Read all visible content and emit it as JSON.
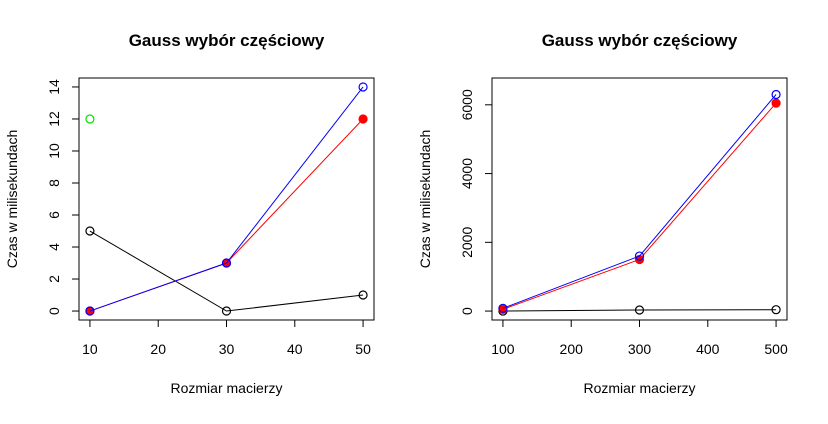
{
  "chart_data": [
    {
      "type": "line",
      "title": "Gauss wybór częściowy",
      "x_label": "Rozmiar macierzy",
      "y_label": "Czas w milisekundach",
      "x": [
        10,
        30,
        50
      ],
      "xlim": [
        8.4,
        51.6
      ],
      "xticks": [
        10,
        20,
        30,
        40,
        50
      ],
      "ylim": [
        -0.56,
        14.56
      ],
      "yticks": [
        0,
        2,
        4,
        6,
        8,
        10,
        12,
        14
      ],
      "series": [
        {
          "color": "#000000",
          "marker": "open",
          "values": [
            5,
            0,
            1
          ]
        },
        {
          "color": "#ff0000",
          "marker": "filled",
          "values": [
            0,
            3,
            12
          ]
        },
        {
          "color": "#0000ff",
          "marker": "open",
          "values": [
            0,
            3,
            14
          ]
        },
        {
          "color": "#00e000",
          "marker": "open",
          "values": [
            12,
            null,
            null
          ]
        }
      ]
    },
    {
      "type": "line",
      "title": "Gauss wybór częściowy",
      "x_label": "Rozmiar macierzy",
      "y_label": "Czas w milisekundach",
      "x": [
        100,
        300,
        500
      ],
      "xlim": [
        84,
        516
      ],
      "xticks": [
        100,
        200,
        300,
        400,
        500
      ],
      "ylim": [
        -260,
        6780
      ],
      "yticks": [
        0,
        2000,
        4000,
        6000
      ],
      "series": [
        {
          "color": "#000000",
          "marker": "open",
          "values": [
            0,
            30,
            40
          ]
        },
        {
          "color": "#ff0000",
          "marker": "filled",
          "values": [
            50,
            1500,
            6050
          ]
        },
        {
          "color": "#0000ff",
          "marker": "open",
          "values": [
            80,
            1600,
            6300
          ]
        }
      ]
    }
  ]
}
